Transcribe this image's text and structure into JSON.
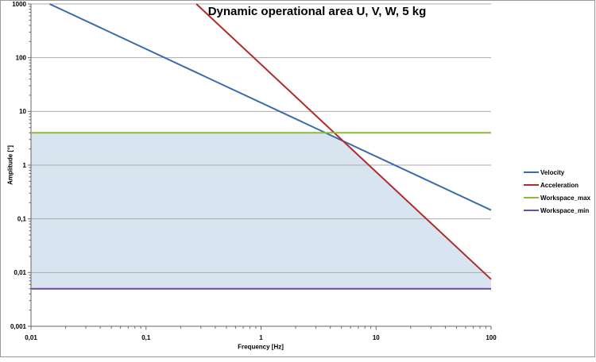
{
  "chart_data": {
    "type": "line",
    "title": "Dynamic operational area U, V, W, 5 kg",
    "xlabel": "Frequency [Hz]",
    "ylabel": "Amplitude [°]",
    "x_scale": "log",
    "y_scale": "log",
    "xlim": [
      0.01,
      100
    ],
    "ylim": [
      0.001,
      1000
    ],
    "grid": "horizontal-only",
    "legend_position": "right",
    "x_ticks": {
      "values": [
        0.01,
        0.1,
        1,
        10,
        100
      ],
      "labels": [
        "0,01",
        "0,1",
        "1",
        "10",
        "100"
      ]
    },
    "y_ticks": {
      "values": [
        1000,
        100,
        10,
        1,
        0.1,
        0.01,
        0.001
      ],
      "labels": [
        "1000",
        "100",
        "10",
        "1",
        "0,1",
        "0,01",
        "0,001"
      ]
    },
    "series": [
      {
        "name": "Velocity",
        "color": "#3A6BAD",
        "points": [
          [
            0.0145,
            1000
          ],
          [
            100,
            0.145
          ]
        ]
      },
      {
        "name": "Acceleration",
        "color": "#B02B2E",
        "points": [
          [
            0.274,
            1000
          ],
          [
            100,
            0.0075
          ]
        ]
      },
      {
        "name": "Workspace_max",
        "color": "#8FB83E",
        "points": [
          [
            0.01,
            4
          ],
          [
            100,
            4
          ]
        ]
      },
      {
        "name": "Workspace_min",
        "color": "#6A4CA0",
        "points": [
          [
            0.01,
            0.005
          ],
          [
            100,
            0.005
          ]
        ]
      }
    ],
    "operational_area": {
      "fill": "#D9E4F1",
      "points": [
        [
          0.01,
          4
        ],
        [
          3.625,
          4
        ],
        [
          5.17,
          2.8
        ],
        [
          100,
          0.0075
        ],
        [
          100,
          0.005
        ],
        [
          0.01,
          0.005
        ]
      ]
    },
    "grid_color": "#ABABAB",
    "axis_color": "#666666",
    "frame_color": "#9A9A9A"
  }
}
